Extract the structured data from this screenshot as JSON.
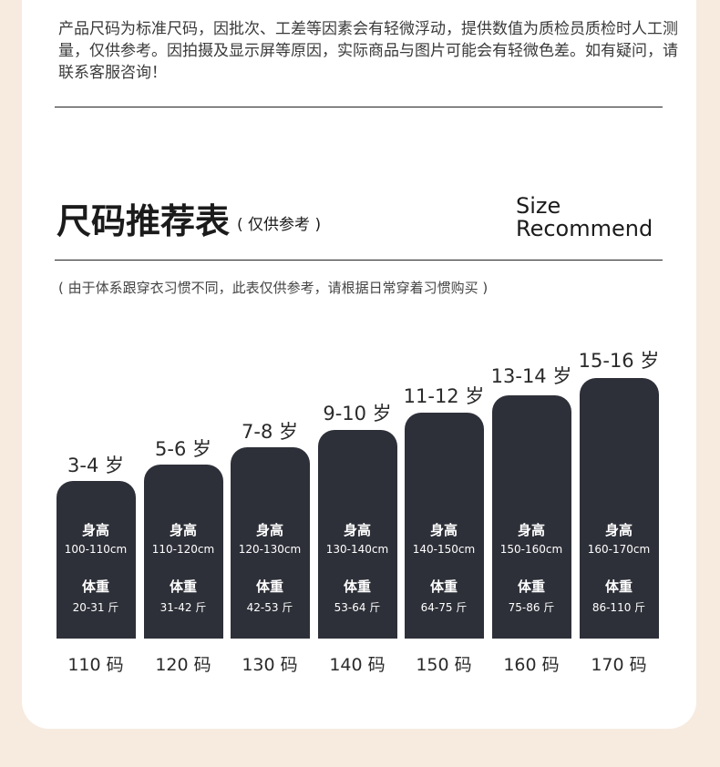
{
  "notice": "产品尺码为标准尺码，因批次、工差等因素会有轻微浮动，提供数值为质检员质检时人工测量，仅供参考。因拍摄及显示屏等原因，实际商品与图片可能会有轻微色差。如有疑问，请联系客服咨询！",
  "header": {
    "title": "尺码推荐表",
    "subtitle": "( 仅供参考 )",
    "en_line1": "Size",
    "en_line2": "Recommend"
  },
  "note": "( 由于体系跟穿衣习惯不同，此表仅供参考，请根据日常穿着习惯购买 )",
  "labels": {
    "height": "身高",
    "weight": "体重"
  },
  "colors": {
    "bar": "#2e3039",
    "background": "#f7ebe0",
    "card": "#ffffff"
  },
  "sizes": [
    {
      "age": "3-4 岁",
      "height": "100-110cm",
      "weight": "20-31 斤",
      "code": "110 码"
    },
    {
      "age": "5-6 岁",
      "height": "110-120cm",
      "weight": "31-42 斤",
      "code": "120 码"
    },
    {
      "age": "7-8 岁",
      "height": "120-130cm",
      "weight": "42-53 斤",
      "code": "130 码"
    },
    {
      "age": "9-10 岁",
      "height": "130-140cm",
      "weight": "53-64 斤",
      "code": "140 码"
    },
    {
      "age": "11-12 岁",
      "height": "140-150cm",
      "weight": "64-75 斤",
      "code": "150 码"
    },
    {
      "age": "13-14 岁",
      "height": "150-160cm",
      "weight": "75-86 斤",
      "code": "160 码"
    },
    {
      "age": "15-16 岁",
      "height": "160-170cm",
      "weight": "86-110 斤",
      "code": "170 码"
    }
  ]
}
